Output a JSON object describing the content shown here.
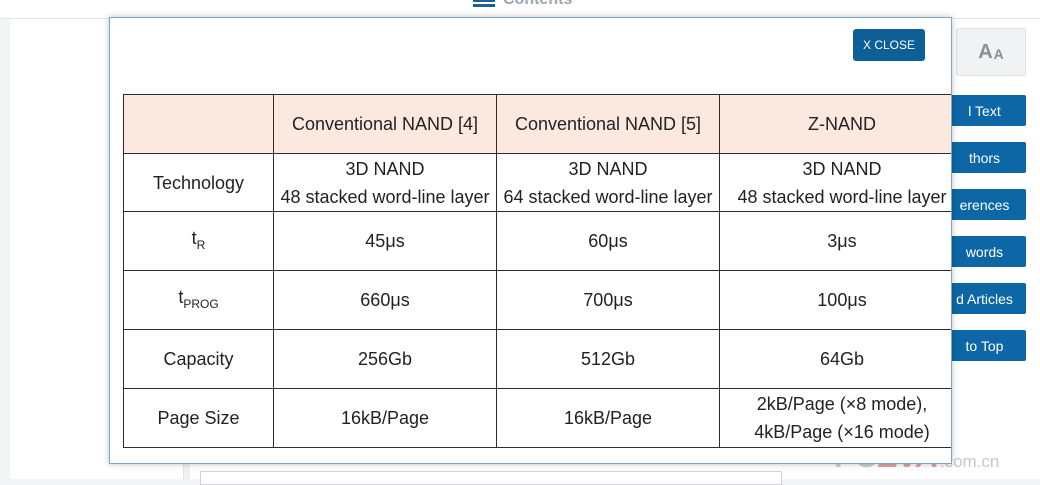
{
  "background": {
    "contents_label": "Contents",
    "font_size_control": {
      "big": "A",
      "small": "A"
    },
    "side_buttons": [
      "l Text",
      "thors",
      "erences",
      "words",
      "d Articles",
      "to Top"
    ],
    "watermark": {
      "pc": "PC",
      "eva": "EVA",
      "domain": ".com.cn"
    }
  },
  "modal": {
    "close_label": "X CLOSE",
    "table": {
      "columns": [
        "",
        "Conventional NAND [4]",
        "Conventional NAND [5]",
        "Z-NAND"
      ],
      "rows": [
        {
          "label": "Technology",
          "label_sub": "",
          "cells": [
            [
              "3D NAND",
              "48 stacked word-line layer"
            ],
            [
              "3D NAND",
              "64 stacked word-line layer"
            ],
            [
              "3D NAND",
              "48 stacked word-line layer"
            ]
          ]
        },
        {
          "label": "t",
          "label_sub": "R",
          "cells": [
            [
              "45μs"
            ],
            [
              "60μs"
            ],
            [
              "3μs"
            ]
          ]
        },
        {
          "label": "t",
          "label_sub": "PROG",
          "cells": [
            [
              "660μs"
            ],
            [
              "700μs"
            ],
            [
              "100μs"
            ]
          ]
        },
        {
          "label": "Capacity",
          "label_sub": "",
          "cells": [
            [
              "256Gb"
            ],
            [
              "512Gb"
            ],
            [
              "64Gb"
            ]
          ]
        },
        {
          "label": "Page Size",
          "label_sub": "",
          "cells": [
            [
              "16kB/Page"
            ],
            [
              "16kB/Page"
            ],
            [
              "2kB/Page (×8 mode),",
              "4kB/Page (×16 mode)"
            ]
          ]
        }
      ]
    }
  },
  "colors": {
    "accent": "#0d67a6",
    "header_fill": "#fbe9df"
  }
}
